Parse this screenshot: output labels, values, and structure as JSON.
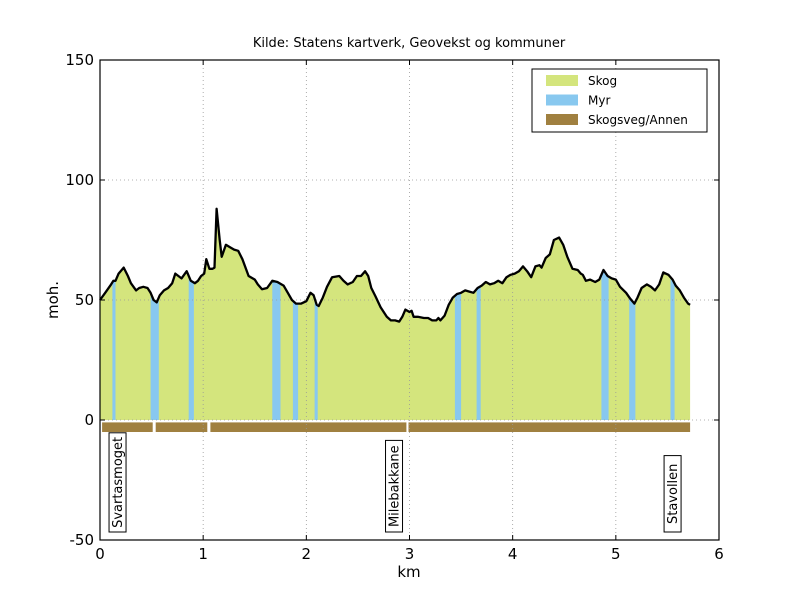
{
  "chart_data": {
    "type": "area",
    "title": "Kilde: Statens kartverk, Geovekst og kommuner",
    "xlabel": "km",
    "ylabel": "moh.",
    "xlim": [
      0,
      6
    ],
    "ylim": [
      -50,
      150
    ],
    "xticks": [
      "0",
      "1",
      "2",
      "3",
      "4",
      "5",
      "6"
    ],
    "yticks": [
      "-50",
      "0",
      "50",
      "100",
      "150"
    ],
    "grid": true,
    "legend_placement": "top-right",
    "colors": {
      "skog": "#d4e57d",
      "myr": "#88c8ef",
      "road": "#a08040",
      "profile": "#000000",
      "grid": "#999999"
    },
    "legend": [
      {
        "label": "Skog",
        "color": "#d4e57d"
      },
      {
        "label": "Myr",
        "color": "#88c8ef"
      },
      {
        "label": "Skogsveg/Annen",
        "color": "#a08040"
      }
    ],
    "elevation": [
      [
        0.0,
        50
      ],
      [
        0.05,
        53
      ],
      [
        0.1,
        56
      ],
      [
        0.13,
        58
      ],
      [
        0.15,
        58
      ],
      [
        0.18,
        61
      ],
      [
        0.23,
        63.5
      ],
      [
        0.27,
        60
      ],
      [
        0.3,
        57
      ],
      [
        0.35,
        54
      ],
      [
        0.38,
        55
      ],
      [
        0.42,
        55.5
      ],
      [
        0.46,
        55
      ],
      [
        0.49,
        53
      ],
      [
        0.52,
        50
      ],
      [
        0.55,
        49
      ],
      [
        0.58,
        52
      ],
      [
        0.62,
        54
      ],
      [
        0.66,
        55
      ],
      [
        0.7,
        57
      ],
      [
        0.73,
        61
      ],
      [
        0.76,
        60
      ],
      [
        0.79,
        59
      ],
      [
        0.84,
        62
      ],
      [
        0.88,
        58
      ],
      [
        0.92,
        57
      ],
      [
        0.95,
        58
      ],
      [
        0.98,
        60
      ],
      [
        1.01,
        61
      ],
      [
        1.03,
        67
      ],
      [
        1.06,
        63
      ],
      [
        1.09,
        63
      ],
      [
        1.11,
        63.5
      ],
      [
        1.13,
        88
      ],
      [
        1.16,
        75
      ],
      [
        1.18,
        68
      ],
      [
        1.22,
        73
      ],
      [
        1.26,
        72
      ],
      [
        1.3,
        71
      ],
      [
        1.34,
        70.5
      ],
      [
        1.38,
        67
      ],
      [
        1.44,
        60
      ],
      [
        1.5,
        58.5
      ],
      [
        1.53,
        56.5
      ],
      [
        1.57,
        54.5
      ],
      [
        1.62,
        55
      ],
      [
        1.67,
        58
      ],
      [
        1.72,
        57.5
      ],
      [
        1.78,
        56
      ],
      [
        1.82,
        53
      ],
      [
        1.86,
        50
      ],
      [
        1.9,
        48.5
      ],
      [
        1.95,
        48.5
      ],
      [
        2.0,
        49.5
      ],
      [
        2.04,
        53
      ],
      [
        2.07,
        52
      ],
      [
        2.1,
        48
      ],
      [
        2.12,
        47.5
      ],
      [
        2.16,
        51
      ],
      [
        2.2,
        55.5
      ],
      [
        2.25,
        59.5
      ],
      [
        2.32,
        60
      ],
      [
        2.36,
        58
      ],
      [
        2.4,
        56.5
      ],
      [
        2.45,
        57.5
      ],
      [
        2.49,
        60
      ],
      [
        2.53,
        60
      ],
      [
        2.57,
        62
      ],
      [
        2.6,
        60
      ],
      [
        2.63,
        55
      ],
      [
        2.67,
        51.5
      ],
      [
        2.72,
        47
      ],
      [
        2.78,
        43
      ],
      [
        2.82,
        41.5
      ],
      [
        2.86,
        41.5
      ],
      [
        2.9,
        41
      ],
      [
        2.93,
        43
      ],
      [
        2.96,
        46
      ],
      [
        3.0,
        45
      ],
      [
        3.02,
        45.5
      ],
      [
        3.04,
        43
      ],
      [
        3.08,
        43
      ],
      [
        3.14,
        42.5
      ],
      [
        3.18,
        42.5
      ],
      [
        3.22,
        41.5
      ],
      [
        3.26,
        41.5
      ],
      [
        3.28,
        42.5
      ],
      [
        3.3,
        41.5
      ],
      [
        3.34,
        43.5
      ],
      [
        3.38,
        48
      ],
      [
        3.42,
        51
      ],
      [
        3.46,
        52.5
      ],
      [
        3.5,
        53
      ],
      [
        3.54,
        54
      ],
      [
        3.58,
        53.5
      ],
      [
        3.62,
        53
      ],
      [
        3.66,
        55
      ],
      [
        3.7,
        56
      ],
      [
        3.74,
        57.5
      ],
      [
        3.78,
        56.5
      ],
      [
        3.82,
        57
      ],
      [
        3.86,
        58
      ],
      [
        3.9,
        57
      ],
      [
        3.94,
        59.5
      ],
      [
        3.98,
        60.5
      ],
      [
        4.02,
        61
      ],
      [
        4.06,
        62
      ],
      [
        4.1,
        64
      ],
      [
        4.14,
        62
      ],
      [
        4.18,
        59.5
      ],
      [
        4.22,
        64
      ],
      [
        4.26,
        64.5
      ],
      [
        4.28,
        63.5
      ],
      [
        4.32,
        67.5
      ],
      [
        4.36,
        69
      ],
      [
        4.4,
        75
      ],
      [
        4.45,
        76
      ],
      [
        4.49,
        73
      ],
      [
        4.53,
        68
      ],
      [
        4.58,
        63
      ],
      [
        4.63,
        62.5
      ],
      [
        4.66,
        61
      ],
      [
        4.68,
        60.5
      ],
      [
        4.71,
        58
      ],
      [
        4.75,
        58.5
      ],
      [
        4.8,
        57.5
      ],
      [
        4.84,
        58.5
      ],
      [
        4.88,
        62.5
      ],
      [
        4.92,
        60
      ],
      [
        4.96,
        59
      ],
      [
        5.0,
        58.5
      ],
      [
        5.04,
        55.5
      ],
      [
        5.1,
        53
      ],
      [
        5.14,
        50.5
      ],
      [
        5.18,
        48.5
      ],
      [
        5.21,
        51
      ],
      [
        5.25,
        55
      ],
      [
        5.3,
        56.5
      ],
      [
        5.34,
        55.5
      ],
      [
        5.38,
        54
      ],
      [
        5.42,
        56.5
      ],
      [
        5.46,
        61.5
      ],
      [
        5.51,
        60.5
      ],
      [
        5.55,
        58.5
      ],
      [
        5.58,
        56
      ],
      [
        5.62,
        54
      ],
      [
        5.66,
        51
      ],
      [
        5.7,
        48.5
      ],
      [
        5.72,
        48
      ]
    ],
    "myr_segments": [
      [
        0.12,
        0.15
      ],
      [
        0.49,
        0.57
      ],
      [
        0.86,
        0.91
      ],
      [
        1.67,
        1.75
      ],
      [
        1.87,
        1.92
      ],
      [
        2.08,
        2.11
      ],
      [
        3.44,
        3.5
      ],
      [
        3.65,
        3.69
      ],
      [
        4.86,
        4.93
      ],
      [
        5.13,
        5.19
      ],
      [
        5.53,
        5.57
      ]
    ],
    "road_segments": [
      [
        0.02,
        0.51
      ],
      [
        0.54,
        1.04
      ],
      [
        1.07,
        2.97
      ],
      [
        2.99,
        5.72
      ]
    ],
    "road_band": [
      -1,
      -5
    ],
    "annotations": [
      {
        "label": "Svartasmoget",
        "x": 0.17
      },
      {
        "label": "Milebakkane",
        "x": 2.85
      },
      {
        "label": "Stavollen",
        "x": 5.55
      }
    ]
  }
}
